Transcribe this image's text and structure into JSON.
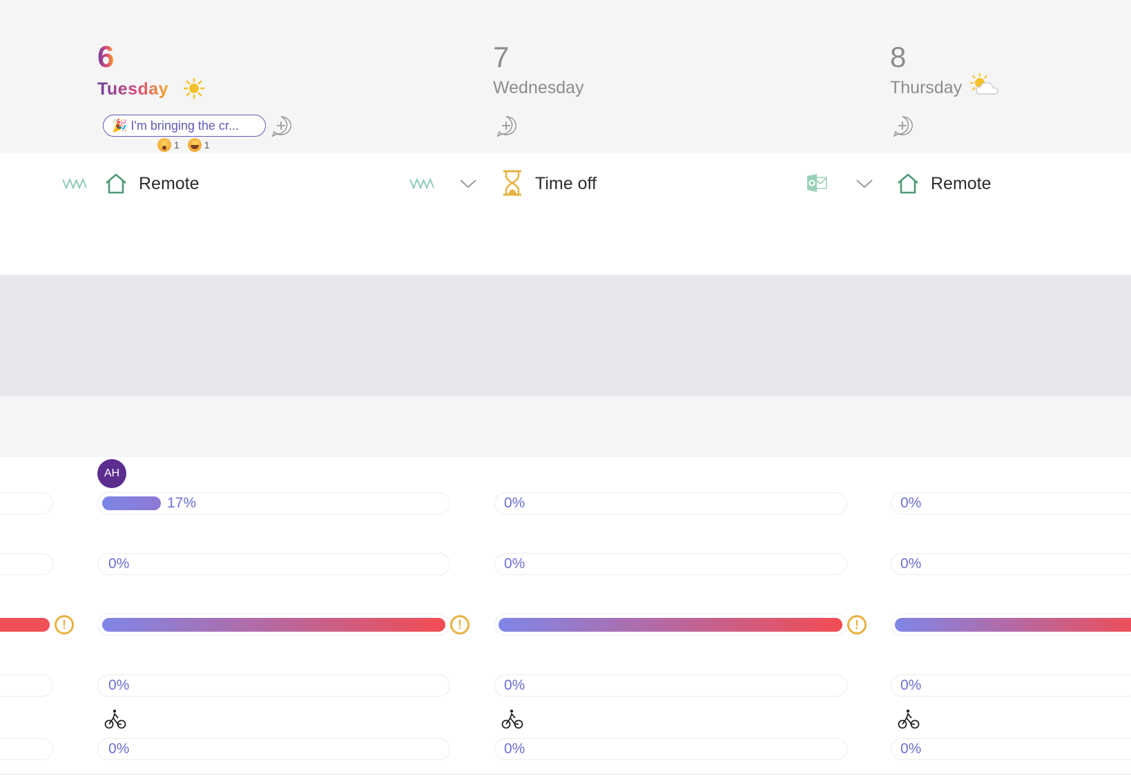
{
  "days": [
    {
      "number": "6",
      "name": "Tuesday",
      "weather": "sun-icon",
      "message": "🎉 I'm bringing the cr...",
      "reactions": [
        {
          "emoji": "astonished",
          "count": "1"
        },
        {
          "emoji": "grin",
          "count": "1"
        }
      ],
      "status": "Remote",
      "status_icon": "home-icon",
      "rows": {
        "first": "17%",
        "second": "0%",
        "fourth": "0%",
        "fifth": "0%"
      }
    },
    {
      "number": "7",
      "name": "Wednesday",
      "weather": "",
      "status": "Time off",
      "status_icon": "hourglass-icon",
      "rows": {
        "first": "0%",
        "second": "0%",
        "fourth": "0%",
        "fifth": "0%"
      }
    },
    {
      "number": "8",
      "name": "Thursday",
      "weather": "partly-cloudy-icon",
      "status": "Remote",
      "status_icon": "home-icon",
      "rows": {
        "first": "0%",
        "second": "0%",
        "fourth": "0%",
        "fifth": "0%"
      }
    }
  ],
  "avatar": {
    "initials": "AH",
    "color": "#5b2d8e"
  },
  "progress": {
    "first_row_day6_fraction": 0.17
  },
  "colors": {
    "accent_purple": "#6b6fd6",
    "remote_green": "#4c9a76",
    "timeoff_gold": "#e6b340",
    "warn_gold": "#e6b340",
    "bar_red": "#ef4f57",
    "outlook_green": "#9ad1b8"
  }
}
